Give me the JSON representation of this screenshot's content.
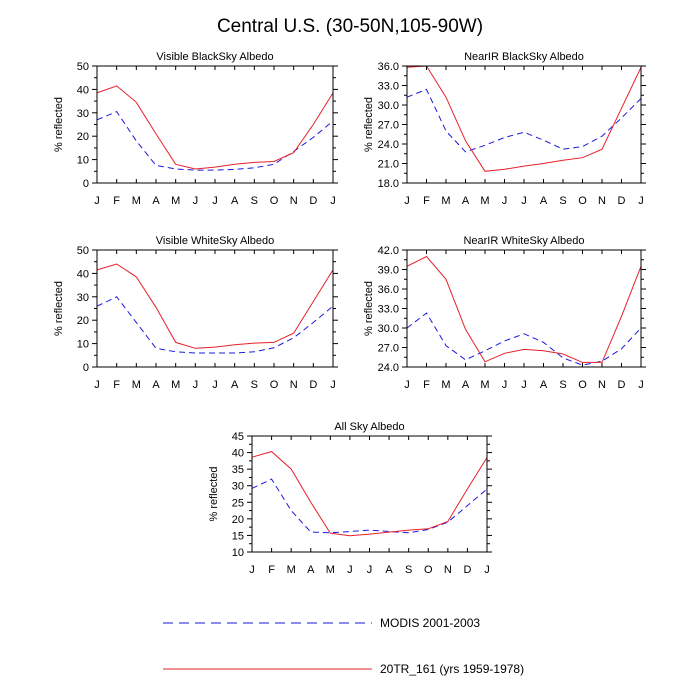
{
  "title": "Central U.S. (30-50N,105-90W)",
  "months": [
    "J",
    "F",
    "M",
    "A",
    "M",
    "J",
    "J",
    "A",
    "S",
    "O",
    "N",
    "D",
    "J"
  ],
  "ylabel": "% reflected",
  "legend": {
    "modis": "MODIS 2001-2003",
    "model": "20TR_161 (yrs 1959-1978)"
  },
  "colors": {
    "modis": "#1a1adf",
    "model": "#e8202a"
  },
  "chart_data": [
    {
      "type": "line",
      "title": "Visible BlackSky Albedo",
      "ylabel": "% reflected",
      "ylim": [
        0,
        50
      ],
      "yticks": [
        "0",
        "10",
        "20",
        "30",
        "40",
        "50"
      ],
      "yminor": [
        5,
        15,
        25,
        35,
        45
      ],
      "categories": [
        "J",
        "F",
        "M",
        "A",
        "M",
        "J",
        "J",
        "A",
        "S",
        "O",
        "N",
        "D",
        "J"
      ],
      "series": [
        {
          "name": "MODIS 2001-2003",
          "values": [
            27,
            30.5,
            18,
            7.5,
            6,
            5.5,
            5.5,
            5.8,
            6.5,
            8,
            13.5,
            19.5,
            26.5
          ]
        },
        {
          "name": "20TR_161 (yrs 1959-1978)",
          "values": [
            38.5,
            41.5,
            34.5,
            21,
            8,
            6,
            6.8,
            8,
            8.8,
            9.2,
            13,
            25,
            38.5
          ]
        }
      ]
    },
    {
      "type": "line",
      "title": "NearIR BlackSky Albedo",
      "ylabel": "% reflected",
      "ylim": [
        18,
        36
      ],
      "yticks": [
        "18.0",
        "21.0",
        "24.0",
        "27.0",
        "30.0",
        "33.0",
        "36.0"
      ],
      "yminor": [
        19.5,
        22.5,
        25.5,
        28.5,
        31.5,
        34.5
      ],
      "categories": [
        "J",
        "F",
        "M",
        "A",
        "M",
        "J",
        "J",
        "A",
        "S",
        "O",
        "N",
        "D",
        "J"
      ],
      "series": [
        {
          "name": "MODIS 2001-2003",
          "values": [
            31.2,
            32.4,
            26,
            22.8,
            23.8,
            25,
            25.8,
            24.6,
            23.2,
            23.6,
            25.2,
            28,
            31
          ]
        },
        {
          "name": "20TR_161 (yrs 1959-1978)",
          "values": [
            35.8,
            36,
            31.2,
            24.5,
            19.8,
            20.1,
            20.6,
            21,
            21.5,
            21.9,
            23.2,
            29.5,
            35.8
          ]
        }
      ]
    },
    {
      "type": "line",
      "title": "Visible WhiteSky Albedo",
      "ylabel": "% reflected",
      "ylim": [
        0,
        50
      ],
      "yticks": [
        "0",
        "10",
        "20",
        "30",
        "40",
        "50"
      ],
      "yminor": [
        5,
        15,
        25,
        35,
        45
      ],
      "categories": [
        "J",
        "F",
        "M",
        "A",
        "M",
        "J",
        "J",
        "A",
        "S",
        "O",
        "N",
        "D",
        "J"
      ],
      "series": [
        {
          "name": "MODIS 2001-2003",
          "values": [
            26,
            30,
            19,
            8,
            6.5,
            6,
            6,
            6,
            6.5,
            8.2,
            12.5,
            19,
            26
          ]
        },
        {
          "name": "20TR_161 (yrs 1959-1978)",
          "values": [
            41.5,
            44,
            38.5,
            25.5,
            10.5,
            8,
            8.5,
            9.5,
            10.2,
            10.5,
            14.5,
            28,
            41.5
          ]
        }
      ]
    },
    {
      "type": "line",
      "title": "NearIR WhiteSky Albedo",
      "ylabel": "% reflected",
      "ylim": [
        24,
        42
      ],
      "yticks": [
        "24.0",
        "27.0",
        "30.0",
        "33.0",
        "36.0",
        "39.0",
        "42.0"
      ],
      "yminor": [
        25.5,
        28.5,
        31.5,
        34.5,
        37.5,
        40.5
      ],
      "categories": [
        "J",
        "F",
        "M",
        "A",
        "M",
        "J",
        "J",
        "A",
        "S",
        "O",
        "N",
        "D",
        "J"
      ],
      "series": [
        {
          "name": "MODIS 2001-2003",
          "values": [
            30,
            32.3,
            27.3,
            25.1,
            26.5,
            28,
            29.1,
            27.8,
            25.4,
            24.3,
            24.9,
            26.8,
            30
          ]
        },
        {
          "name": "20TR_161 (yrs 1959-1978)",
          "values": [
            39.5,
            41,
            37.5,
            29.8,
            24.8,
            26.1,
            26.7,
            26.5,
            26,
            24.7,
            24.7,
            31.8,
            39.5
          ]
        }
      ]
    },
    {
      "type": "line",
      "title": "All Sky Albedo",
      "ylabel": "% reflected",
      "ylim": [
        10,
        45
      ],
      "yticks": [
        "10",
        "15",
        "20",
        "25",
        "30",
        "35",
        "40",
        "45"
      ],
      "yminor": [
        12.5,
        17.5,
        22.5,
        27.5,
        32.5,
        37.5,
        42.5
      ],
      "categories": [
        "J",
        "F",
        "M",
        "A",
        "M",
        "J",
        "J",
        "A",
        "S",
        "O",
        "N",
        "D",
        "J"
      ],
      "series": [
        {
          "name": "MODIS 2001-2003",
          "values": [
            29.2,
            32,
            22.5,
            16,
            15.8,
            16.2,
            16.6,
            16.2,
            15.8,
            16.8,
            19,
            24,
            29
          ]
        },
        {
          "name": "20TR_161 (yrs 1959-1978)",
          "values": [
            38.6,
            40.3,
            35,
            25,
            15.7,
            14.9,
            15.4,
            16,
            16.6,
            17,
            19.2,
            29,
            38.5
          ]
        }
      ]
    }
  ]
}
